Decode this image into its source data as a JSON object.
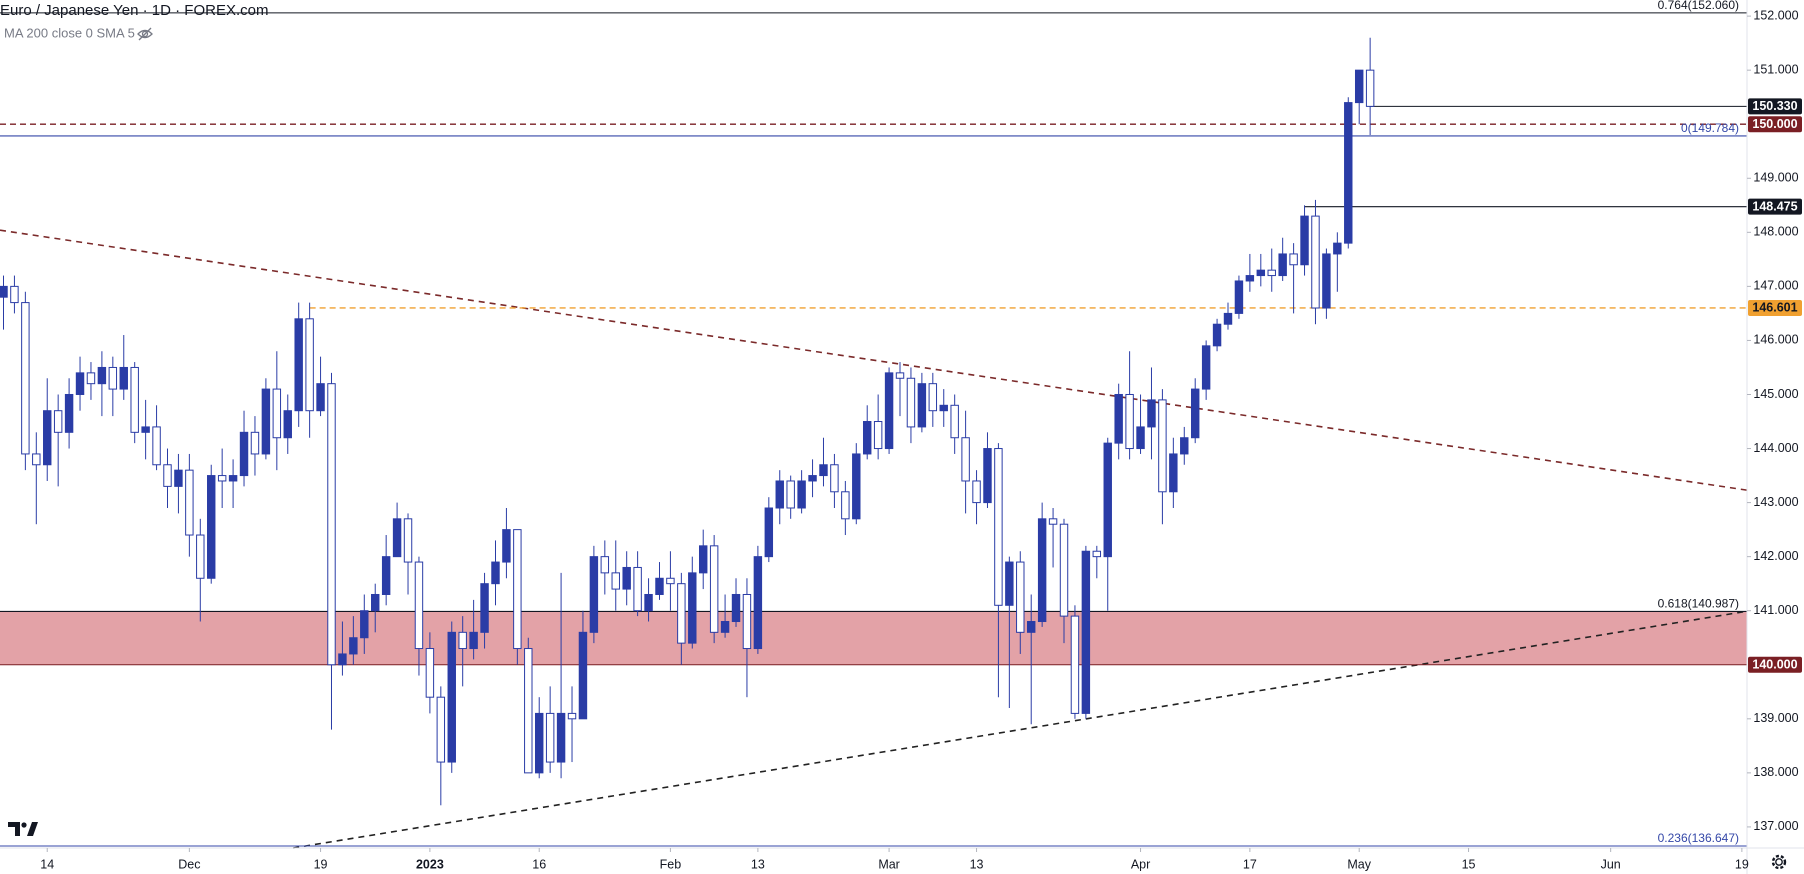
{
  "title": "Euro / Japanese Yen · 1D · FOREX.com",
  "indicator": "MA 200 close 0 SMA 5",
  "chart_data": {
    "type": "candlestick",
    "xlim": [
      -0.32,
      159.47
    ],
    "xticks": [
      {
        "value": 4,
        "label": "14"
      },
      {
        "value": 17,
        "label": "Dec"
      },
      {
        "value": 29,
        "label": "19"
      },
      {
        "value": 39,
        "label": "2023"
      },
      {
        "value": 49,
        "label": "16"
      },
      {
        "value": 61,
        "label": "Feb"
      },
      {
        "value": 69,
        "label": "13"
      },
      {
        "value": 81,
        "label": "Mar"
      },
      {
        "value": 89,
        "label": "13"
      },
      {
        "value": 104,
        "label": "Apr"
      },
      {
        "value": 114,
        "label": "17"
      },
      {
        "value": 124,
        "label": "May"
      },
      {
        "value": 134,
        "label": "15"
      },
      {
        "value": 147,
        "label": "Jun"
      },
      {
        "value": 159,
        "label": "19"
      }
    ],
    "ylim": [
      136.61,
      152.298
    ],
    "yticks": [
      {
        "value": 137,
        "label": "137.000"
      },
      {
        "value": 138,
        "label": "138.000"
      },
      {
        "value": 139,
        "label": "139.000"
      },
      {
        "value": 141,
        "label": "141.000"
      },
      {
        "value": 142,
        "label": "142.000"
      },
      {
        "value": 143,
        "label": "143.000"
      },
      {
        "value": 144,
        "label": "144.000"
      },
      {
        "value": 145,
        "label": "145.000"
      },
      {
        "value": 146,
        "label": "146.000"
      },
      {
        "value": 147,
        "label": "147.000"
      },
      {
        "value": 148,
        "label": "148.000"
      },
      {
        "value": 149,
        "label": "149.000"
      },
      {
        "value": 151,
        "label": "151.000"
      },
      {
        "value": 152,
        "label": "152.000"
      }
    ],
    "up_color": "#2a3ca6",
    "down_color": "#ffffff",
    "border_color": "#2a3ca6",
    "open": [
      146.8,
      147.0,
      146.7,
      143.9,
      143.7,
      144.7,
      144.3,
      145.0,
      145.4,
      145.2,
      145.5,
      145.1,
      145.5,
      144.3,
      144.4,
      143.7,
      143.3,
      143.6,
      142.4,
      141.6,
      143.5,
      143.4,
      143.5,
      144.3,
      143.9,
      145.1,
      144.2,
      144.7,
      146.4,
      144.7,
      145.2,
      140.0,
      140.2,
      140.5,
      141.0,
      141.3,
      142.0,
      142.7,
      141.9,
      140.3,
      139.4,
      138.2,
      140.6,
      140.3,
      140.6,
      141.5,
      141.9,
      142.5,
      140.3,
      138.0,
      139.1,
      138.2,
      139.1,
      139.0,
      140.6,
      142.0,
      141.7,
      141.4,
      141.8,
      141.0,
      141.3,
      141.6,
      141.5,
      140.4,
      141.7,
      142.2,
      140.6,
      140.8,
      141.3,
      140.3,
      142.0,
      142.9,
      143.4,
      142.9,
      143.4,
      143.5,
      143.7,
      143.2,
      142.7,
      143.9,
      144.5,
      144.0,
      145.4,
      145.3,
      144.4,
      145.2,
      144.7,
      144.8,
      144.2,
      143.4,
      143.0,
      144.0,
      141.1,
      141.9,
      140.6,
      140.8,
      142.7,
      142.6,
      140.9,
      139.1,
      142.1,
      142.0,
      144.1,
      145.0,
      144.0,
      144.4,
      144.9,
      143.2,
      143.9,
      144.2,
      145.1,
      145.9,
      146.3,
      146.5,
      147.1,
      147.2,
      147.3,
      147.2,
      147.6,
      147.4,
      148.3,
      146.6,
      147.6,
      147.8,
      150.4,
      151.0
    ],
    "high": [
      147.2,
      147.2,
      146.9,
      144.3,
      145.3,
      145.0,
      145.3,
      145.7,
      145.6,
      145.8,
      145.7,
      146.1,
      145.6,
      144.9,
      144.8,
      144.0,
      143.9,
      143.9,
      142.7,
      143.7,
      144.0,
      143.8,
      144.7,
      144.6,
      145.3,
      145.8,
      145.0,
      146.7,
      146.7,
      145.7,
      145.4,
      140.8,
      140.9,
      141.3,
      141.5,
      142.4,
      143.0,
      142.8,
      142.0,
      140.6,
      139.6,
      140.8,
      140.9,
      141.2,
      141.7,
      142.3,
      142.9,
      142.5,
      140.5,
      139.4,
      139.6,
      141.7,
      139.6,
      141.0,
      142.2,
      142.3,
      142.3,
      142.1,
      142.1,
      141.6,
      141.9,
      142.1,
      141.7,
      142.0,
      142.5,
      142.4,
      141.3,
      141.6,
      141.6,
      142.2,
      143.1,
      143.6,
      143.5,
      143.6,
      143.8,
      144.2,
      143.9,
      143.4,
      144.1,
      144.8,
      145.0,
      145.5,
      145.6,
      145.5,
      145.4,
      145.4,
      145.1,
      145.0,
      144.7,
      143.6,
      144.3,
      144.1,
      142.0,
      142.1,
      141.3,
      143.0,
      142.9,
      142.7,
      141.1,
      142.2,
      142.2,
      144.2,
      145.2,
      145.8,
      145.0,
      145.5,
      145.1,
      144.2,
      144.4,
      145.3,
      146.0,
      146.4,
      146.7,
      147.2,
      147.6,
      147.6,
      147.7,
      147.9,
      147.8,
      148.5,
      148.6,
      147.7,
      148.0,
      150.5,
      151.0,
      151.6
    ],
    "low": [
      146.2,
      146.5,
      143.6,
      142.6,
      143.4,
      143.3,
      144.0,
      144.7,
      144.9,
      144.6,
      144.6,
      144.9,
      144.1,
      143.8,
      143.6,
      142.9,
      142.8,
      142.0,
      140.8,
      141.5,
      142.9,
      142.9,
      143.3,
      143.5,
      143.8,
      143.6,
      143.9,
      144.4,
      144.2,
      144.6,
      138.8,
      139.8,
      140.0,
      140.2,
      140.6,
      141.1,
      142.0,
      141.3,
      139.8,
      139.1,
      137.4,
      138.0,
      139.6,
      140.1,
      140.3,
      141.1,
      141.6,
      140.0,
      138.0,
      137.9,
      138.0,
      137.9,
      138.2,
      139.0,
      140.4,
      141.3,
      141.0,
      141.1,
      140.9,
      140.8,
      141.2,
      141.0,
      140.0,
      140.3,
      141.4,
      140.4,
      140.5,
      140.7,
      139.4,
      140.2,
      141.9,
      142.6,
      142.7,
      142.8,
      143.1,
      143.3,
      142.9,
      142.4,
      142.6,
      143.8,
      143.8,
      143.9,
      144.6,
      144.1,
      144.3,
      144.4,
      144.4,
      143.9,
      142.8,
      142.6,
      142.9,
      139.4,
      139.2,
      140.2,
      138.9,
      140.7,
      141.8,
      140.4,
      139.0,
      139.0,
      141.6,
      141.0,
      143.8,
      143.8,
      143.9,
      143.8,
      142.6,
      142.9,
      143.7,
      144.1,
      144.9,
      145.8,
      146.2,
      146.4,
      146.9,
      147.0,
      146.9,
      147.1,
      146.5,
      147.2,
      146.3,
      146.4,
      146.9,
      147.7,
      150.0,
      149.8
    ],
    "close": [
      147.0,
      146.7,
      143.9,
      143.7,
      144.7,
      144.3,
      145.0,
      145.4,
      145.2,
      145.5,
      145.1,
      145.5,
      144.3,
      144.4,
      143.7,
      143.3,
      143.6,
      142.4,
      141.6,
      143.5,
      143.4,
      143.5,
      144.3,
      143.9,
      145.1,
      144.2,
      144.7,
      146.4,
      144.7,
      145.2,
      140.0,
      140.2,
      140.5,
      141.0,
      141.3,
      142.0,
      142.7,
      141.9,
      140.3,
      139.4,
      138.2,
      140.6,
      140.3,
      140.6,
      141.5,
      141.9,
      142.5,
      140.3,
      138.0,
      139.1,
      138.2,
      139.1,
      139.0,
      140.6,
      142.0,
      141.7,
      141.4,
      141.8,
      141.0,
      141.3,
      141.6,
      141.5,
      140.4,
      141.7,
      142.2,
      140.6,
      140.8,
      141.3,
      140.3,
      142.0,
      142.9,
      143.4,
      142.9,
      143.4,
      143.5,
      143.7,
      143.2,
      142.7,
      143.9,
      144.5,
      144.0,
      145.4,
      145.3,
      144.4,
      145.2,
      144.7,
      144.8,
      144.2,
      143.4,
      143.0,
      144.0,
      141.1,
      141.9,
      140.6,
      140.8,
      142.7,
      142.6,
      140.9,
      139.1,
      142.1,
      142.0,
      144.1,
      145.0,
      144.0,
      144.4,
      144.9,
      143.2,
      143.9,
      144.2,
      145.1,
      145.9,
      146.3,
      146.5,
      147.1,
      147.2,
      147.3,
      147.2,
      147.6,
      147.4,
      148.3,
      146.6,
      147.6,
      147.8,
      150.4,
      151.0,
      150.33
    ],
    "zone": {
      "low": 140.0,
      "high": 140.987,
      "color": "#e3a2a7"
    },
    "levels": [
      {
        "value": 152.06,
        "label": "0.764(152.060)",
        "color": "#131722",
        "style": "solid",
        "badge": false
      },
      {
        "value": 150.33,
        "label": "150.330",
        "color": "#131722",
        "style": "solid",
        "badge": true,
        "from": 125
      },
      {
        "value": 150.0,
        "label": "150.000",
        "color": "#7a1f24",
        "style": "dashed",
        "badge": true
      },
      {
        "value": 149.784,
        "label": "0(149.784)",
        "color": "#3447a8",
        "style": "solid",
        "badge": false
      },
      {
        "value": 148.475,
        "label": "148.475",
        "color": "#131722",
        "style": "solid",
        "badge": true,
        "from": 119
      },
      {
        "value": 146.601,
        "label": "146.601",
        "color": "#f0a030",
        "style": "dashed",
        "badge": true,
        "from": 28,
        "badge_text": "#131722"
      },
      {
        "value": 140.987,
        "label": "0.618(140.987)",
        "color": "#131722",
        "style": "solid",
        "badge": false
      },
      {
        "value": 140.0,
        "label": "140.000",
        "color": "#7a1f24",
        "style": "solid",
        "badge": true
      },
      {
        "value": 136.647,
        "label": "0.236(136.647)",
        "color": "#3447a8",
        "style": "solid",
        "badge": false
      }
    ],
    "trendlines": [
      {
        "x": [
          -0.32,
          159.47
        ],
        "y": [
          148.04,
          143.23
        ],
        "color": "#7b2a2a"
      },
      {
        "x": [
          26.5,
          159.47
        ],
        "y": [
          136.61,
          140.99
        ],
        "color": "#222222"
      }
    ]
  }
}
